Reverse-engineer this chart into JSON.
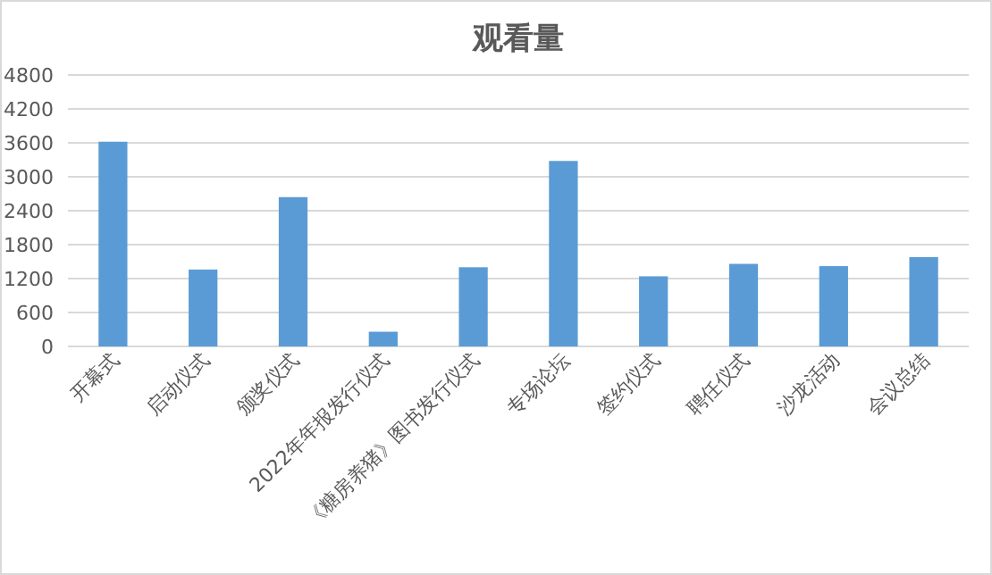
{
  "chart_data": {
    "type": "bar",
    "title": "观看量",
    "categories": [
      "开幕式",
      "启动仪式",
      "颁奖仪式",
      "2022年年报发行仪式",
      "《糖房养猪》图书发行仪式",
      "专场论坛",
      "签约仪式",
      "聘任仪式",
      "沙龙活动",
      "会议总结"
    ],
    "values": [
      3620,
      1360,
      2640,
      260,
      1400,
      3280,
      1240,
      1460,
      1420,
      1580
    ],
    "color": "#5b9bd5",
    "ylim": [
      0,
      4800
    ],
    "yticks": [
      0,
      600,
      1200,
      1800,
      2400,
      3000,
      3600,
      4200,
      4800
    ],
    "grid": "y"
  }
}
